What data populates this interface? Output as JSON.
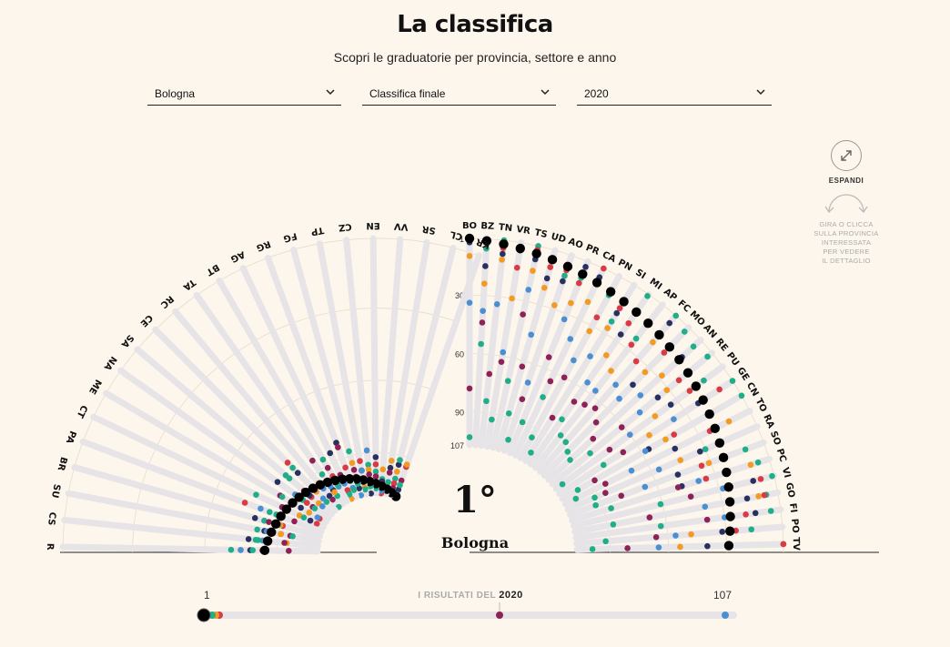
{
  "title": "La classifica",
  "subtitle": "Scopri le graduatorie per provincia, settore e anno",
  "filters": {
    "province": "Bologna",
    "ranking": "Classifica finale",
    "year": "2020"
  },
  "expand": {
    "icon": "expand-arrows-icon",
    "label": "ESPANDI"
  },
  "hint": {
    "icon": "rotate-gesture-icon",
    "text": [
      "GIRA O CLICCA",
      "SULLA PROVINCIA",
      "INTERESSATA",
      "PER VEDERE",
      "IL DETTAGLIO"
    ]
  },
  "selected": {
    "rank": "1°",
    "name": "Bologna"
  },
  "slider": {
    "min": "1",
    "max": "107",
    "caption": "I RISULTATI DEL",
    "year": "2020",
    "selected_rank": 1
  },
  "colors": {
    "black": "#000000",
    "teal": "#1fae87",
    "red": "#d93a43",
    "navy": "#28305f",
    "orange": "#f29a22",
    "blue": "#4b8fd3",
    "plum": "#8e2257",
    "bar": "#e4e2e6"
  },
  "chart_data": {
    "type": "scatter",
    "description_axis": "rank 1-107 radial",
    "rank_ticks": [
      "1",
      "30",
      "60",
      "90",
      "107"
    ],
    "rank_range": [
      1,
      107
    ],
    "right_provinces": [
      "BO",
      "BZ",
      "TN",
      "VR",
      "TS",
      "UD",
      "AO",
      "PR",
      "CA",
      "PN",
      "SI",
      "MI",
      "AP",
      "FC",
      "MO",
      "AN",
      "RE",
      "PU",
      "GE",
      "CN",
      "TO",
      "RA",
      "SO",
      "PC",
      "VI",
      "GO",
      "FI",
      "PO",
      "TV"
    ],
    "left_provinces": [
      "KR",
      "CL",
      "SR",
      "VV",
      "EN",
      "CZ",
      "TP",
      "FG",
      "RG",
      "AG",
      "BT",
      "TA",
      "RC",
      "CE",
      "SA",
      "NA",
      "ME",
      "CT",
      "PA",
      "BR",
      "SU",
      "CS",
      "R"
    ],
    "right_final_ranks": [
      1,
      2,
      3,
      4,
      5,
      6,
      7,
      8,
      9,
      10,
      11,
      12,
      13,
      14,
      15,
      16,
      17,
      18,
      19,
      20,
      21,
      22,
      23,
      24,
      25,
      26,
      27,
      28,
      29
    ],
    "left_final_ranks": [
      107,
      106,
      105,
      104,
      103,
      102,
      101,
      100,
      99,
      98,
      97,
      96,
      95,
      94,
      93,
      92,
      91,
      90,
      89,
      88,
      87,
      86,
      85
    ],
    "right_dots": [
      [
        1,
        1,
        2,
        3,
        10,
        34,
        78,
        103
      ],
      [
        2,
        6,
        3,
        15,
        24,
        38,
        44,
        55
      ],
      [
        3,
        1,
        5,
        8,
        11,
        34,
        70,
        84
      ],
      [
        4,
        3,
        14,
        5,
        30,
        58,
        63,
        93
      ],
      [
        5,
        1,
        3,
        8,
        14,
        24,
        37,
        72
      ],
      [
        6,
        6,
        10,
        16,
        21,
        46,
        63,
        88
      ],
      [
        7,
        12,
        9,
        15,
        28,
        70,
        79,
        101
      ],
      [
        8,
        10,
        13,
        4,
        24,
        33,
        54,
        90
      ],
      [
        9,
        7,
        1,
        6,
        20,
        41,
        65,
        74
      ],
      [
        10,
        12,
        25,
        11,
        33,
        50,
        60,
        95
      ],
      [
        11,
        23,
        15,
        18,
        27,
        44,
        81,
        102
      ],
      [
        12,
        2,
        19,
        26,
        39,
        56,
        68,
        79
      ],
      [
        13,
        23,
        27,
        14,
        44,
        57,
        66,
        86
      ],
      [
        14,
        1,
        32,
        6,
        19,
        48,
        64,
        87
      ],
      [
        15,
        4,
        19,
        42,
        33,
        52,
        69,
        90
      ],
      [
        16,
        6,
        15,
        14,
        28,
        43,
        76,
        92
      ],
      [
        17,
        4,
        23,
        37,
        31,
        49,
        61,
        82
      ],
      [
        18,
        13,
        22,
        34,
        44,
        60,
        73,
        103
      ],
      [
        19,
        1,
        9,
        22,
        52,
        37,
        68,
        80
      ],
      [
        20,
        1,
        41,
        56,
        46,
        58,
        88,
        98
      ],
      [
        21,
        21,
        24,
        44,
        13,
        69,
        84,
        101
      ],
      [
        22,
        30,
        23,
        33,
        44,
        56,
        86,
        92
      ],
      [
        23,
        11,
        35,
        48,
        31,
        66,
        79,
        93
      ],
      [
        24,
        7,
        35,
        48,
        11,
        39,
        50,
        86
      ],
      [
        25,
        2,
        8,
        12,
        24,
        28,
        45,
        61
      ],
      [
        26,
        7,
        8,
        17,
        11,
        39,
        68,
        87
      ],
      [
        27,
        6,
        19,
        14,
        28,
        30,
        39,
        63
      ],
      [
        28,
        17,
        25,
        32,
        48,
        56,
        66,
        92
      ],
      [
        29,
        1,
        1,
        40,
        54,
        65,
        81,
        99
      ]
    ],
    "left_dots": [
      [
        107,
        104,
        94,
        104,
        93,
        106,
        100,
        102
      ],
      [
        106,
        100,
        102,
        94,
        97,
        105,
        104,
        92
      ],
      [
        105,
        104,
        104,
        96,
        93,
        102,
        98,
        102
      ],
      [
        104,
        101,
        107,
        102,
        97,
        106,
        103,
        104
      ],
      [
        103,
        98,
        95,
        92,
        100,
        104,
        100,
        105
      ],
      [
        102,
        95,
        104,
        107,
        97,
        89,
        99,
        104
      ],
      [
        101,
        97,
        93,
        97,
        104,
        97,
        105,
        105
      ],
      [
        100,
        88,
        99,
        104,
        93,
        107,
        96,
        102
      ],
      [
        99,
        100,
        94,
        83,
        103,
        103,
        85,
        104
      ],
      [
        98,
        104,
        103,
        86,
        107,
        100,
        96,
        105
      ],
      [
        97,
        87,
        95,
        99,
        99,
        100,
        91,
        99
      ],
      [
        96,
        103,
        96,
        100,
        101,
        98,
        85,
        92
      ],
      [
        95,
        95,
        96,
        101,
        94,
        97,
        103,
        107
      ],
      [
        94,
        102,
        79,
        85,
        96,
        100,
        95,
        82
      ],
      [
        93,
        84,
        96,
        95,
        100,
        102,
        92,
        82
      ],
      [
        92,
        94,
        96,
        81,
        99,
        90,
        99,
        100
      ],
      [
        91,
        104,
        104,
        95,
        99,
        103,
        85,
        86
      ],
      [
        90,
        76,
        104,
        101,
        96,
        88,
        88,
        98
      ],
      [
        89,
        84,
        73,
        88,
        89,
        80,
        95,
        87
      ],
      [
        88,
        83,
        91,
        79,
        90,
        89,
        85,
        88
      ],
      [
        87,
        81,
        91,
        84,
        91,
        85,
        95,
        96
      ],
      [
        86,
        81,
        85,
        78,
        94,
        84,
        93,
        82
      ],
      [
        85,
        71,
        84,
        79,
        75,
        75,
        95,
        80
      ]
    ]
  }
}
